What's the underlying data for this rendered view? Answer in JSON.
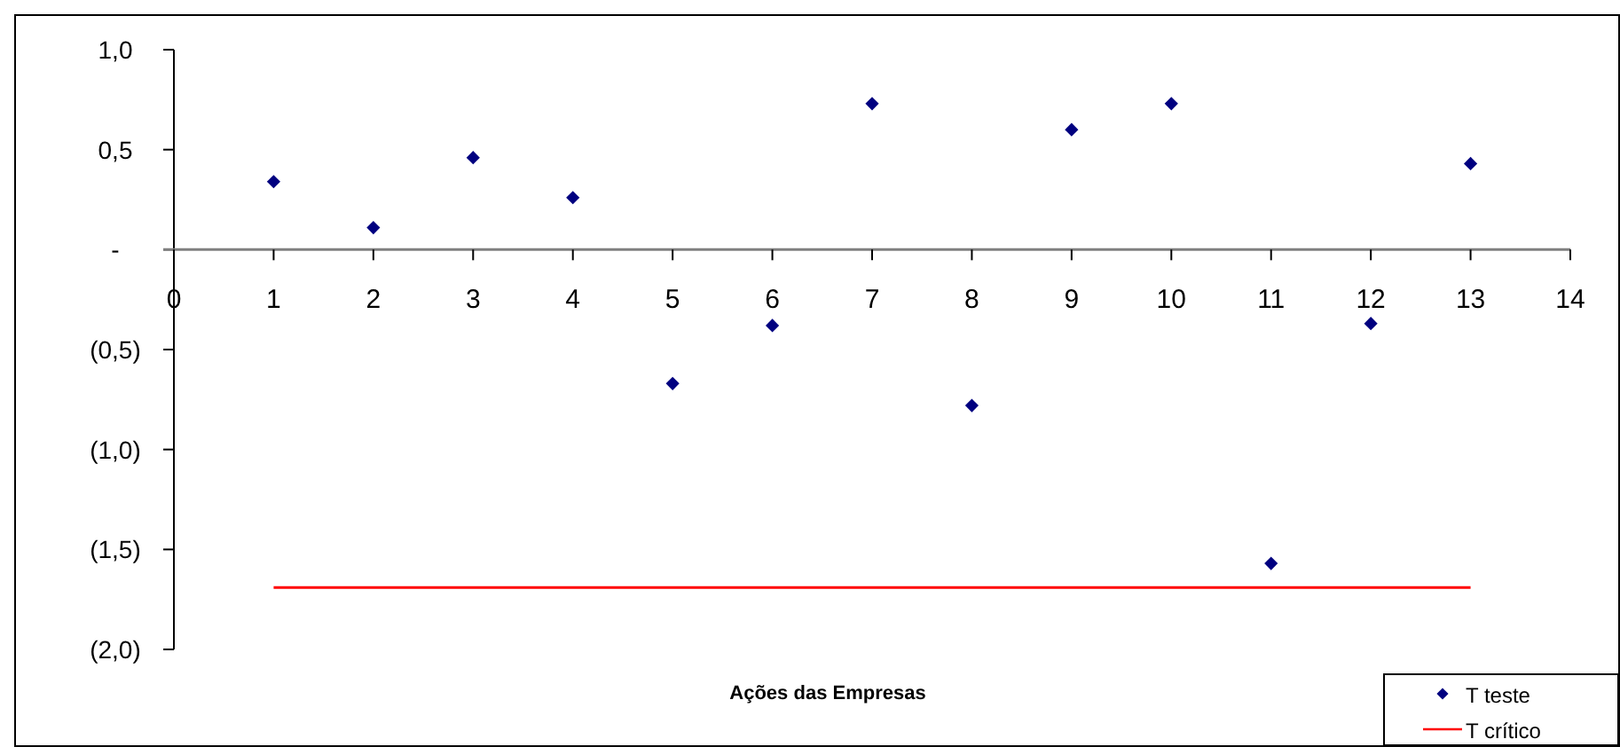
{
  "chart_data": {
    "type": "scatter",
    "xlabel": "Ações das Empresas",
    "xlim": [
      0,
      14
    ],
    "xticks": [
      0,
      1,
      2,
      3,
      4,
      5,
      6,
      7,
      8,
      9,
      10,
      11,
      12,
      13,
      14
    ],
    "ylim": [
      -2.0,
      1.0
    ],
    "yticks": [
      {
        "value": -2.0,
        "label": "(2,0)"
      },
      {
        "value": -1.5,
        "label": "(1,5)"
      },
      {
        "value": -1.0,
        "label": "(1,0)"
      },
      {
        "value": -0.5,
        "label": "(0,5)"
      },
      {
        "value": 0,
        "label": "-"
      },
      {
        "value": 0.5,
        "label": "0,5"
      },
      {
        "value": 1.0,
        "label": "1,0"
      }
    ],
    "grid": false,
    "legend": "bottom right",
    "series": [
      {
        "name": "T teste",
        "marker": "diamond",
        "color": "#000080",
        "x": [
          1,
          2,
          3,
          4,
          5,
          6,
          7,
          8,
          9,
          10,
          11,
          12,
          13
        ],
        "values": [
          0.34,
          0.11,
          0.46,
          0.26,
          -0.67,
          -0.38,
          0.73,
          -0.78,
          0.6,
          0.73,
          -1.57,
          -0.37,
          0.43
        ]
      },
      {
        "name": "T crítico",
        "type": "line",
        "marker": "none",
        "line_style": "solid",
        "color": "#ff0000",
        "x": [
          1,
          2,
          3,
          4,
          5,
          6,
          7,
          8,
          9,
          10,
          11,
          12,
          13
        ],
        "values": [
          -1.69,
          -1.69,
          -1.69,
          -1.69,
          -1.69,
          -1.69,
          -1.69,
          -1.69,
          -1.69,
          -1.69,
          -1.69,
          -1.69,
          -1.69
        ]
      }
    ]
  }
}
